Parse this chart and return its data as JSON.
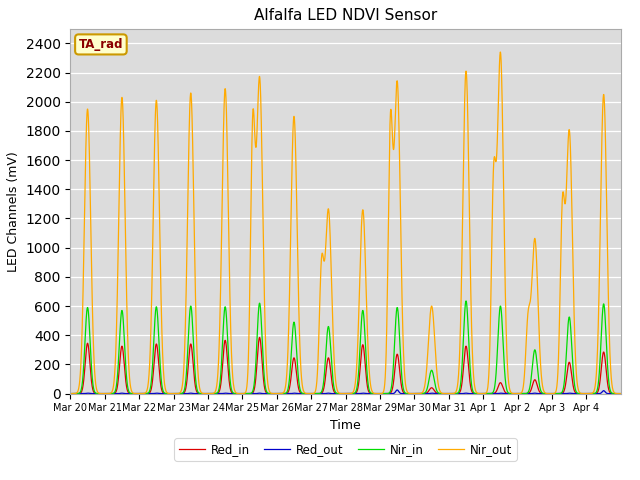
{
  "title": "Alfalfa LED NDVI Sensor",
  "xlabel": "Time",
  "ylabel": "LED Channels (mV)",
  "ylim": [
    0,
    2500
  ],
  "bg_color": "#dcdcdc",
  "fig_color": "#ffffff",
  "legend_label": "TA_rad",
  "line_colors": {
    "Red_in": "#dd0000",
    "Red_out": "#0000cc",
    "Nir_in": "#00dd00",
    "Nir_out": "#ffaa00"
  },
  "days": [
    "Mar 20",
    "Mar 21",
    "Mar 22",
    "Mar 23",
    "Mar 24",
    "Mar 25",
    "Mar 26",
    "Mar 27",
    "Mar 28",
    "Mar 29",
    "Mar 30",
    "Mar 31",
    "Apr 1",
    "Apr 2",
    "Apr 3",
    "Apr 4"
  ],
  "day_peaks_nir_out": [
    1950,
    2030,
    2010,
    2060,
    2090,
    2160,
    1900,
    1260,
    1260,
    2130,
    600,
    2210,
    2330,
    1060,
    1800,
    2050
  ],
  "day_peaks_nir_out2": [
    0,
    0,
    0,
    0,
    0,
    1720,
    0,
    820,
    0,
    1720,
    0,
    0,
    1350,
    460,
    1180,
    0
  ],
  "day_peaks_nir_in": [
    590,
    570,
    595,
    600,
    595,
    620,
    490,
    460,
    570,
    590,
    160,
    635,
    600,
    300,
    525,
    615
  ],
  "day_peaks_red_in": [
    345,
    325,
    340,
    340,
    365,
    385,
    245,
    245,
    335,
    270,
    40,
    325,
    75,
    95,
    215,
    285
  ],
  "day_peaks_red_out": [
    3,
    3,
    3,
    3,
    3,
    3,
    3,
    3,
    3,
    25,
    3,
    3,
    3,
    3,
    3,
    20
  ],
  "n_days": 16,
  "pts_per_day": 288
}
